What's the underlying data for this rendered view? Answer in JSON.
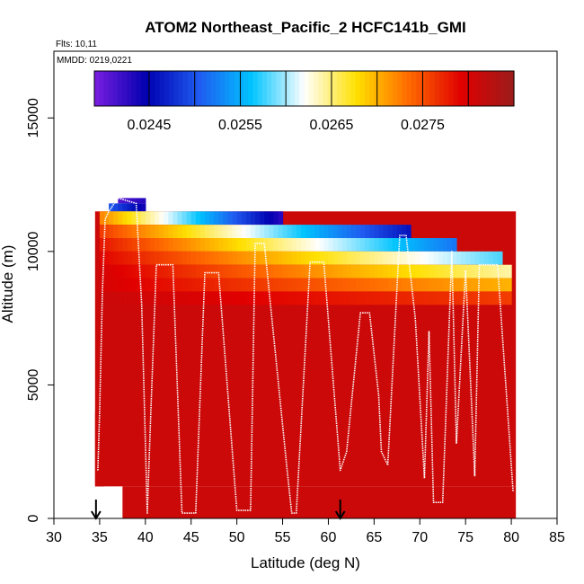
{
  "chart_data": {
    "type": "heatmap",
    "title": "ATOM2 Northeast_Pacific_2 HCFC141b_GMI",
    "flights_label": "Flts: 10,11",
    "dates_label": "MMDD: 0219,0221",
    "xlabel": "Latitude (deg N)",
    "ylabel": "Altitude (m)",
    "xlim": [
      30,
      85
    ],
    "ylim": [
      0,
      17500
    ],
    "x_ticks": [
      "30",
      "35",
      "40",
      "45",
      "50",
      "55",
      "60",
      "65",
      "70",
      "75",
      "80",
      "85"
    ],
    "y_ticks": [
      "0",
      "5000",
      "10000",
      "15000"
    ],
    "colorbar": {
      "range": [
        0.0239,
        0.0285
      ],
      "tick_labels": [
        "0.0245",
        "0.0255",
        "0.0265",
        "0.0275"
      ],
      "tick_values": [
        0.0245,
        0.0255,
        0.0265,
        0.0275
      ],
      "stops": [
        "#7a1ee0",
        "#0000b0",
        "#1f5bf0",
        "#00c4ff",
        "#ffffff",
        "#ffe000",
        "#ff6a00",
        "#e00000",
        "#9c1c1c"
      ]
    },
    "background_value": 0.0281,
    "layers": [
      {
        "lat": [
          37.0,
          40.0
        ],
        "alt": [
          11800,
          12000
        ],
        "values": [
          0.0241,
          0.0243
        ]
      },
      {
        "lat": [
          36.0,
          40.0
        ],
        "alt": [
          11500,
          11800
        ],
        "values": [
          0.025,
          0.0244
        ]
      },
      {
        "lat": [
          35.0,
          55.0
        ],
        "alt": [
          11000,
          11500
        ],
        "values": [
          0.0272,
          0.0243
        ]
      },
      {
        "lat": [
          35.0,
          69.0
        ],
        "alt": [
          10500,
          11000
        ],
        "values": [
          0.0276,
          0.0246
        ]
      },
      {
        "lat": [
          35.0,
          74.0
        ],
        "alt": [
          10000,
          10500
        ],
        "values": [
          0.0278,
          0.0252
        ]
      },
      {
        "lat": [
          35.0,
          79.0
        ],
        "alt": [
          9500,
          10000
        ],
        "values": [
          0.0279,
          0.0258
        ]
      },
      {
        "lat": [
          35.0,
          80.0
        ],
        "alt": [
          9000,
          9500
        ],
        "values": [
          0.028,
          0.0264
        ]
      },
      {
        "lat": [
          35.0,
          80.0
        ],
        "alt": [
          8500,
          9000
        ],
        "values": [
          0.028,
          0.027
        ]
      },
      {
        "lat": [
          35.0,
          80.0
        ],
        "alt": [
          8000,
          8500
        ],
        "values": [
          0.0281,
          0.0276
        ]
      }
    ],
    "flight_track": [
      [
        34.8,
        1800
      ],
      [
        35.0,
        4000
      ],
      [
        35.3,
        8500
      ],
      [
        35.6,
        11200
      ],
      [
        36.0,
        11500
      ],
      [
        37.0,
        12000
      ],
      [
        39.0,
        11800
      ],
      [
        39.6,
        8000
      ],
      [
        40.2,
        200
      ],
      [
        40.6,
        4000
      ],
      [
        41.2,
        9500
      ],
      [
        43.0,
        9500
      ],
      [
        44.0,
        200
      ],
      [
        45.5,
        200
      ],
      [
        46.5,
        9200
      ],
      [
        48.0,
        9200
      ],
      [
        50.0,
        300
      ],
      [
        51.5,
        300
      ],
      [
        52.0,
        10300
      ],
      [
        53.0,
        10300
      ],
      [
        55.5,
        1800
      ],
      [
        56.0,
        200
      ],
      [
        56.5,
        200
      ],
      [
        58.0,
        9600
      ],
      [
        59.5,
        9600
      ],
      [
        61.3,
        1800
      ],
      [
        62.0,
        2500
      ],
      [
        63.5,
        7700
      ],
      [
        64.5,
        7700
      ],
      [
        65.5,
        4600
      ],
      [
        65.8,
        2500
      ],
      [
        66.5,
        2000
      ],
      [
        67.8,
        10600
      ],
      [
        68.5,
        10600
      ],
      [
        69.5,
        7500
      ],
      [
        70.5,
        1500
      ],
      [
        71.0,
        7000
      ],
      [
        71.5,
        600
      ],
      [
        72.5,
        600
      ],
      [
        73.5,
        10000
      ],
      [
        74.0,
        2800
      ],
      [
        75.0,
        9300
      ],
      [
        76.0,
        1600
      ],
      [
        76.5,
        9500
      ],
      [
        78.5,
        9500
      ],
      [
        80.2,
        1000
      ]
    ],
    "arrows": [
      34.6,
      61.3
    ]
  }
}
